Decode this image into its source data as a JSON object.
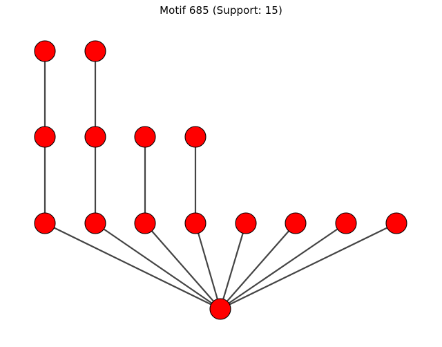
{
  "title": "Motif 685 (Support: 15)",
  "graph": {
    "node_color": "#ff0000",
    "node_stroke_color": "#000000",
    "edge_color": "#444444",
    "nodes": [
      "n1",
      "n2",
      "n3",
      "n4",
      "n5",
      "n6",
      "n7",
      "n8",
      "n9",
      "n10",
      "n11",
      "n12",
      "n13",
      "n14",
      "n15"
    ],
    "edges": [
      [
        "n1",
        "n3"
      ],
      [
        "n2",
        "n4"
      ],
      [
        "n3",
        "n7"
      ],
      [
        "n4",
        "n8"
      ],
      [
        "n5",
        "n9"
      ],
      [
        "n6",
        "n10"
      ],
      [
        "n7",
        "n15"
      ],
      [
        "n8",
        "n15"
      ],
      [
        "n9",
        "n15"
      ],
      [
        "n10",
        "n15"
      ],
      [
        "n11",
        "n15"
      ],
      [
        "n12",
        "n15"
      ],
      [
        "n13",
        "n15"
      ],
      [
        "n14",
        "n15"
      ]
    ]
  }
}
